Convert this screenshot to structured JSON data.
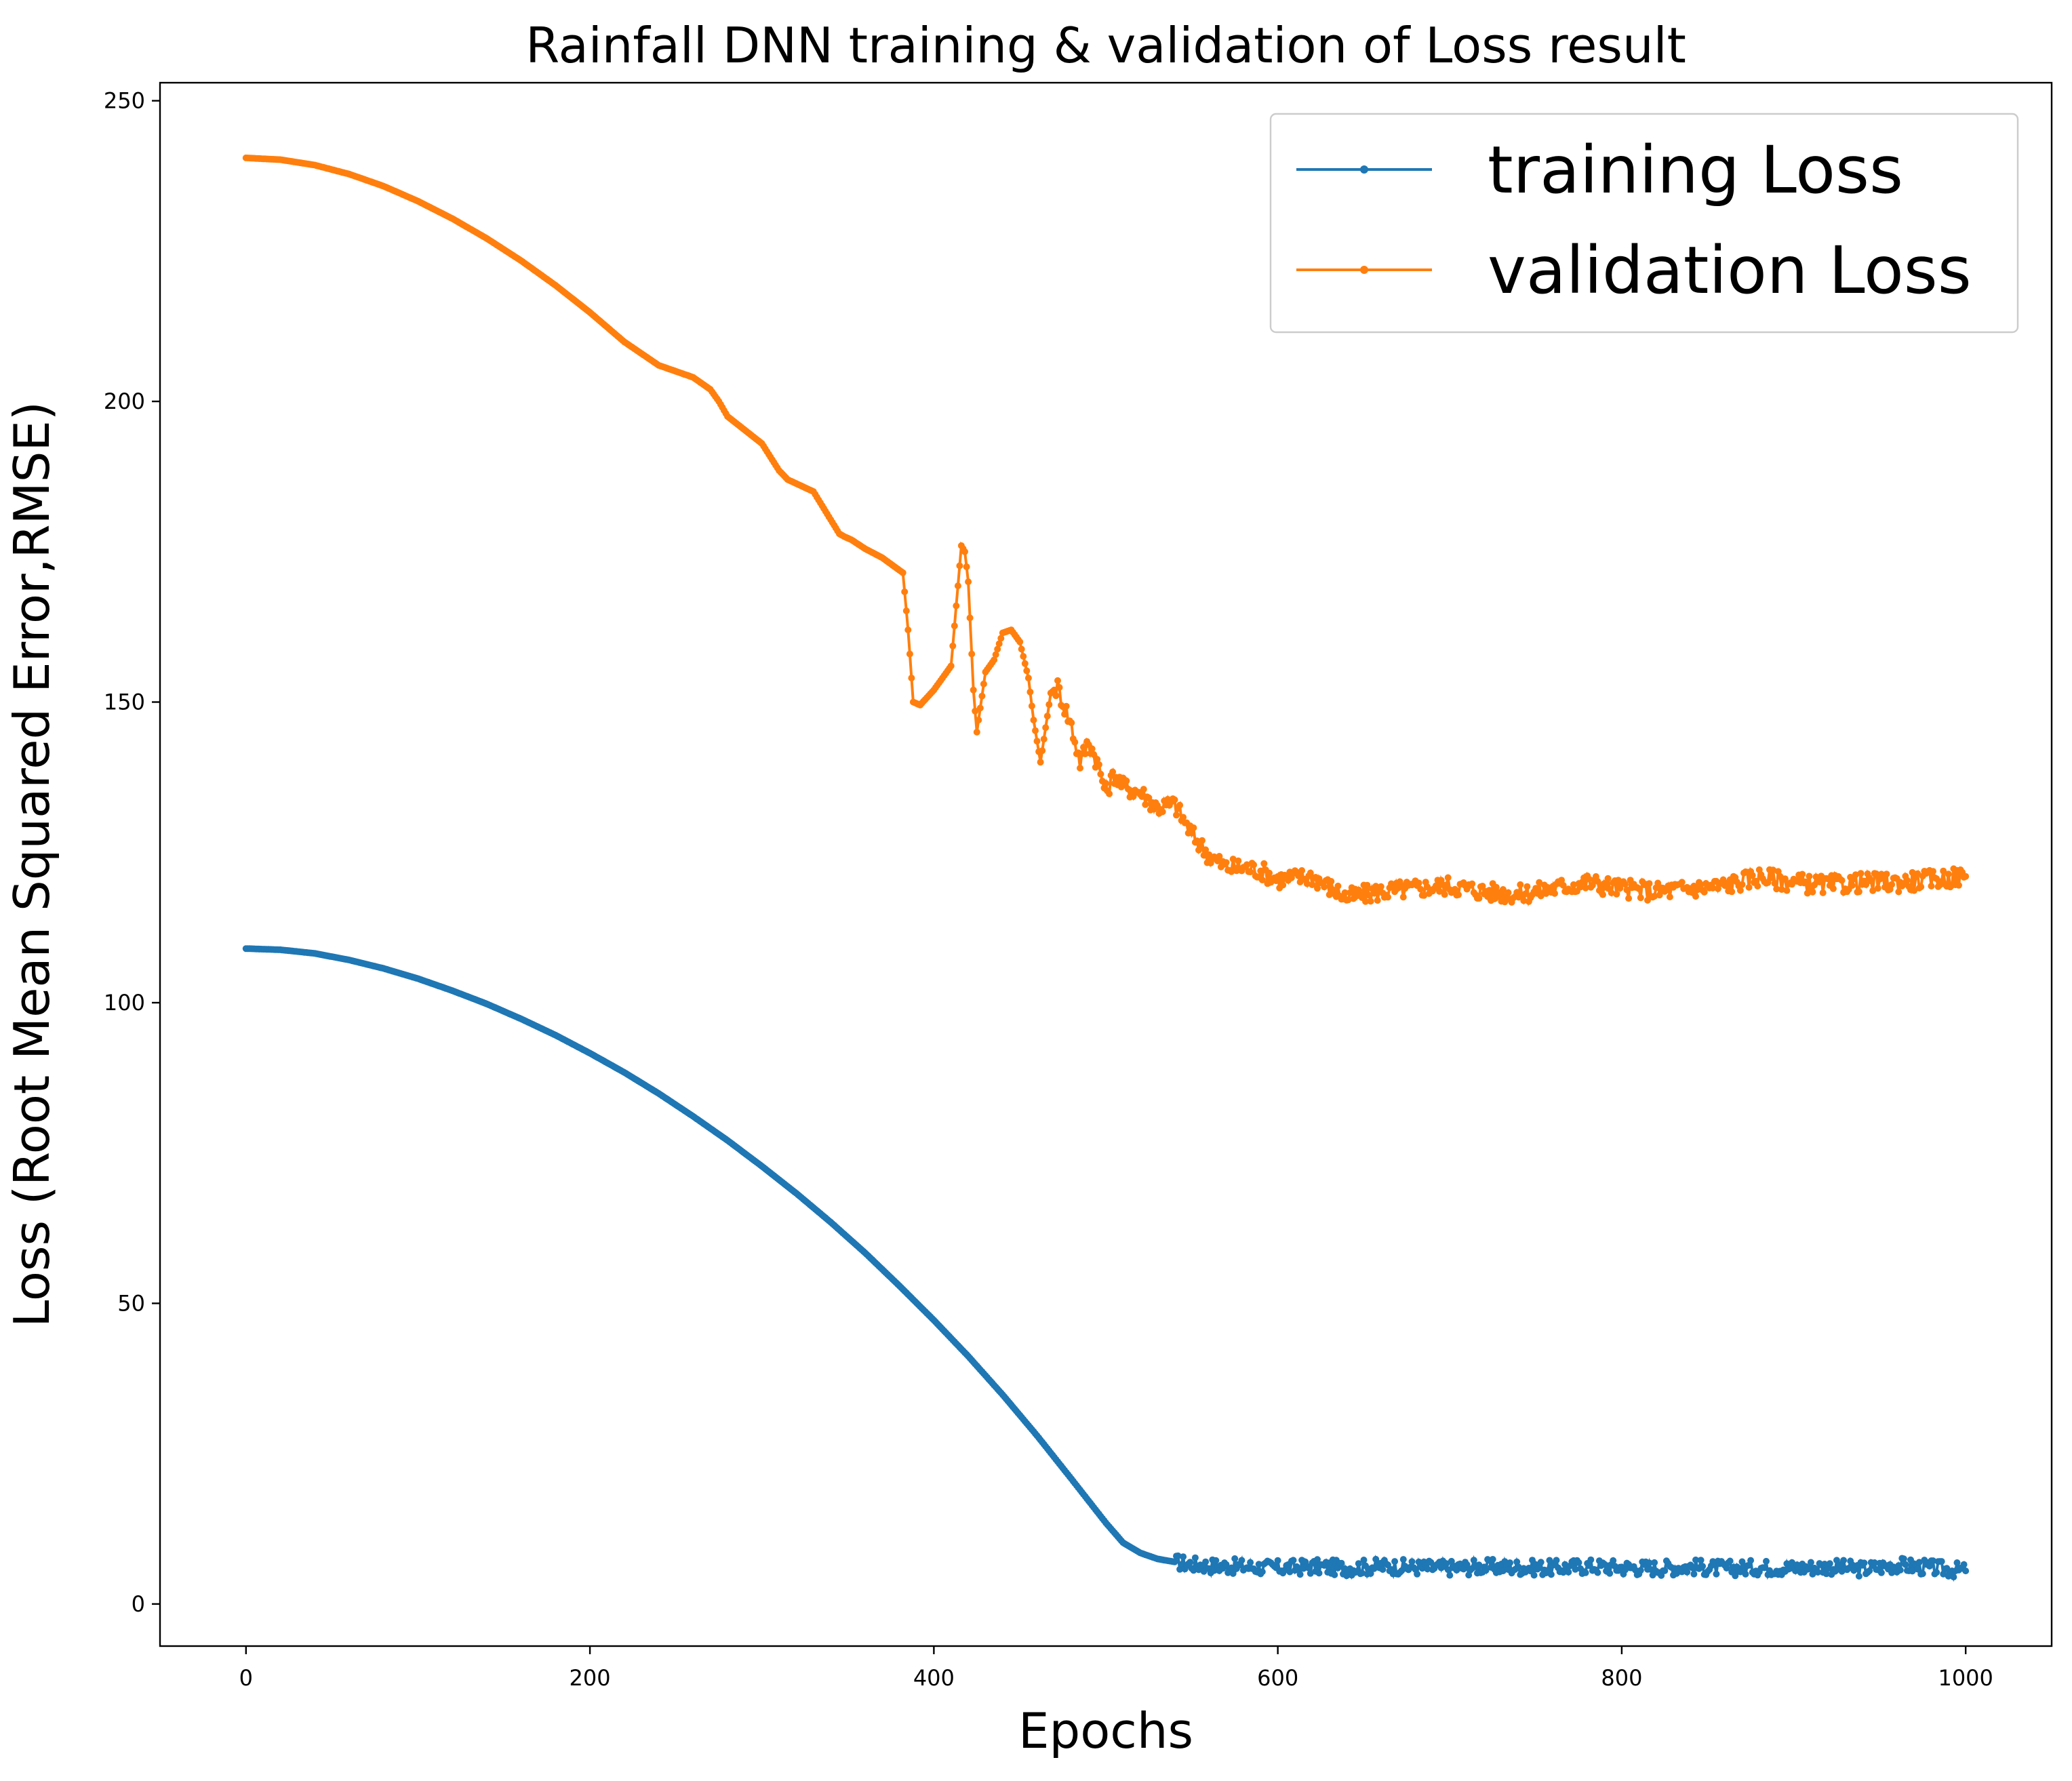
{
  "chart_data": {
    "type": "line",
    "title": "Rainfall DNN training & validation of Loss result",
    "xlabel": "Epochs",
    "ylabel": "Loss (Root Mean Squared Error,RMSE)",
    "xlim": [
      -50,
      1050
    ],
    "ylim": [
      -7,
      253
    ],
    "xticks": [
      0,
      200,
      400,
      600,
      800,
      1000
    ],
    "yticks": [
      0,
      50,
      100,
      150,
      200,
      250
    ],
    "legend_position": "top-right",
    "grid": false,
    "series": [
      {
        "name": "training Loss",
        "color": "#1f77b4",
        "marker": "point",
        "x": [
          0,
          20,
          40,
          60,
          80,
          100,
          120,
          140,
          160,
          180,
          200,
          220,
          240,
          260,
          280,
          300,
          320,
          340,
          360,
          380,
          400,
          420,
          440,
          460,
          480,
          500,
          510,
          520,
          530,
          540,
          550,
          560,
          570,
          580,
          590,
          600,
          620,
          640,
          660,
          680,
          700,
          720,
          740,
          760,
          780,
          800,
          820,
          840,
          860,
          880,
          900,
          920,
          940,
          960,
          980,
          1000
        ],
        "y": [
          109,
          108.8,
          108.2,
          107.1,
          105.7,
          104.0,
          102.0,
          99.8,
          97.3,
          94.6,
          91.6,
          88.4,
          84.9,
          81.1,
          77.1,
          72.8,
          68.3,
          63.5,
          58.4,
          52.9,
          47.2,
          41.2,
          34.8,
          28.0,
          20.8,
          13.5,
          10.2,
          8.5,
          7.5,
          7.0,
          6.6,
          6.4,
          6.3,
          6.2,
          6.1,
          6.0,
          6.2,
          6.0,
          6.3,
          6.1,
          6.0,
          6.2,
          6.1,
          6.0,
          6.3,
          6.1,
          6.0,
          6.2,
          5.9,
          6.1,
          6.0,
          6.2,
          5.8,
          6.5,
          6.0,
          5.5
        ]
      },
      {
        "name": "validation Loss",
        "color": "#ff7f0e",
        "marker": "point",
        "x": [
          0,
          20,
          40,
          60,
          80,
          100,
          120,
          140,
          160,
          180,
          200,
          220,
          240,
          260,
          270,
          275,
          280,
          300,
          310,
          315,
          330,
          345,
          348,
          352,
          360,
          370,
          382,
          385,
          388,
          392,
          400,
          410,
          413,
          416,
          418,
          420,
          423,
          425,
          430,
          435,
          440,
          445,
          450,
          455,
          458,
          462,
          468,
          472,
          480,
          485,
          490,
          495,
          500,
          505,
          510,
          520,
          530,
          540,
          550,
          560,
          570,
          580,
          590,
          600,
          620,
          640,
          660,
          680,
          700,
          720,
          740,
          760,
          780,
          800,
          820,
          840,
          860,
          880,
          900,
          920,
          940,
          960,
          980,
          1000
        ],
        "y": [
          240.5,
          240.2,
          239.3,
          237.8,
          235.8,
          233.3,
          230.4,
          227.1,
          223.4,
          219.3,
          214.8,
          209.9,
          206.0,
          204.0,
          202.0,
          200.0,
          197.5,
          193.0,
          188.5,
          187.0,
          185.0,
          178.0,
          177.5,
          177.0,
          175.5,
          174.0,
          171.5,
          162.0,
          150.0,
          149.5,
          152.0,
          156.0,
          166.0,
          176.0,
          175.0,
          170.0,
          152.0,
          145.0,
          155.0,
          157.0,
          161.5,
          162.0,
          160.0,
          154.0,
          147.0,
          140.0,
          151.5,
          152.5,
          146.0,
          140.0,
          143.5,
          140.0,
          135.0,
          138.0,
          136.0,
          135.0,
          132.5,
          133.0,
          128.0,
          124.5,
          122.5,
          122.5,
          122.0,
          120.5,
          121.0,
          117.5,
          118.5,
          119.0,
          119.5,
          118.5,
          118.0,
          119.0,
          120.0,
          119.0,
          118.5,
          119.0,
          119.5,
          121.0,
          120.0,
          119.5,
          120.0,
          120.0,
          120.5,
          121.0
        ]
      }
    ]
  }
}
